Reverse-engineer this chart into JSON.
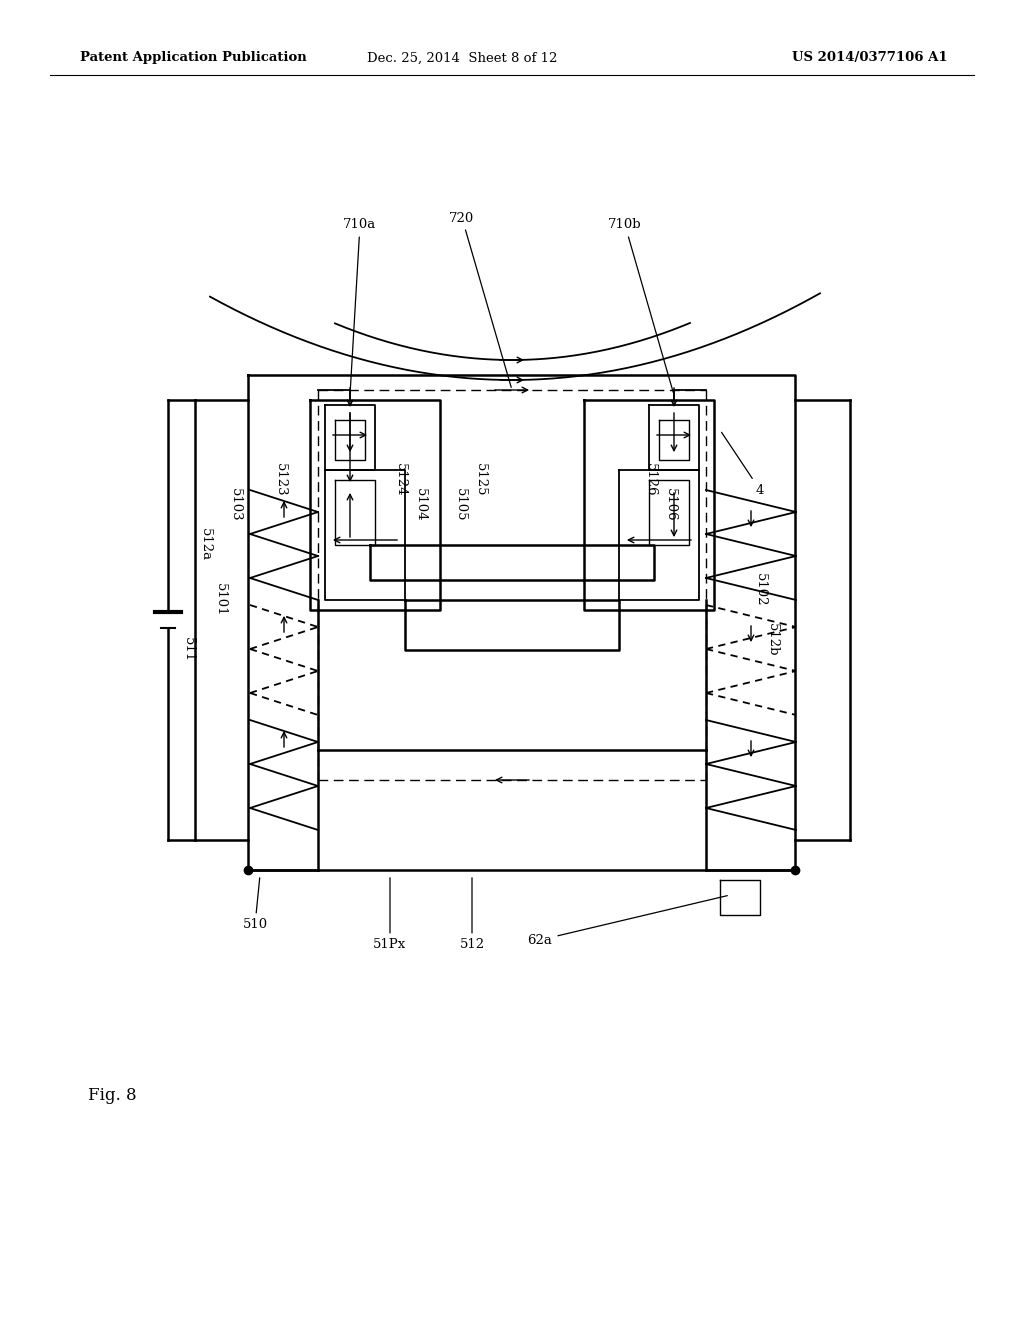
{
  "title_left": "Patent Application Publication",
  "title_mid": "Dec. 25, 2014  Sheet 8 of 12",
  "title_right": "US 2014/0377106 A1",
  "fig_label": "Fig. 8",
  "bg_color": "#ffffff",
  "line_color": "#000000"
}
